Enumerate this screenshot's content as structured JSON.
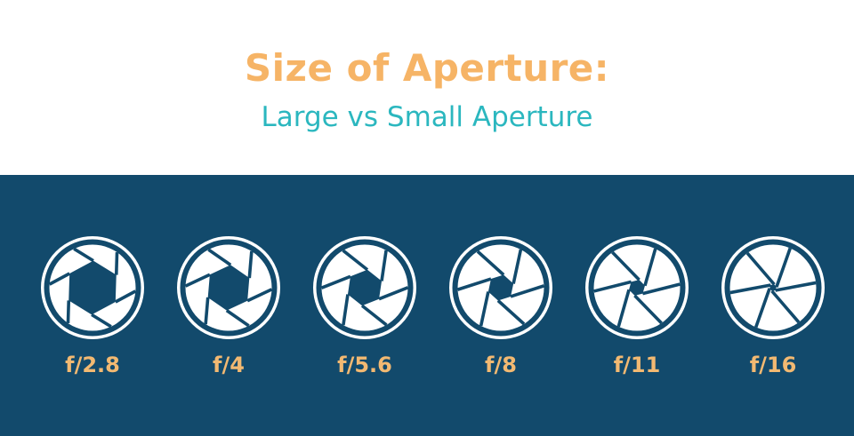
{
  "title": "Size of Aperture:",
  "subtitle": "Large vs Small Aperture",
  "colors": {
    "title": "#f6b466",
    "subtitle": "#2bb7bf",
    "panel": "#124a6c",
    "icon": "#ffffff",
    "label": "#f2b972"
  },
  "apertures": [
    {
      "label": "f/2.8",
      "icon": "aperture-icon",
      "opening": 0.92
    },
    {
      "label": "f/4",
      "icon": "aperture-icon",
      "opening": 0.78
    },
    {
      "label": "f/5.6",
      "icon": "aperture-icon",
      "opening": 0.62
    },
    {
      "label": "f/8",
      "icon": "aperture-icon",
      "opening": 0.45
    },
    {
      "label": "f/11",
      "icon": "aperture-icon",
      "opening": 0.28
    },
    {
      "label": "f/16",
      "icon": "aperture-icon",
      "opening": 0.12
    }
  ]
}
